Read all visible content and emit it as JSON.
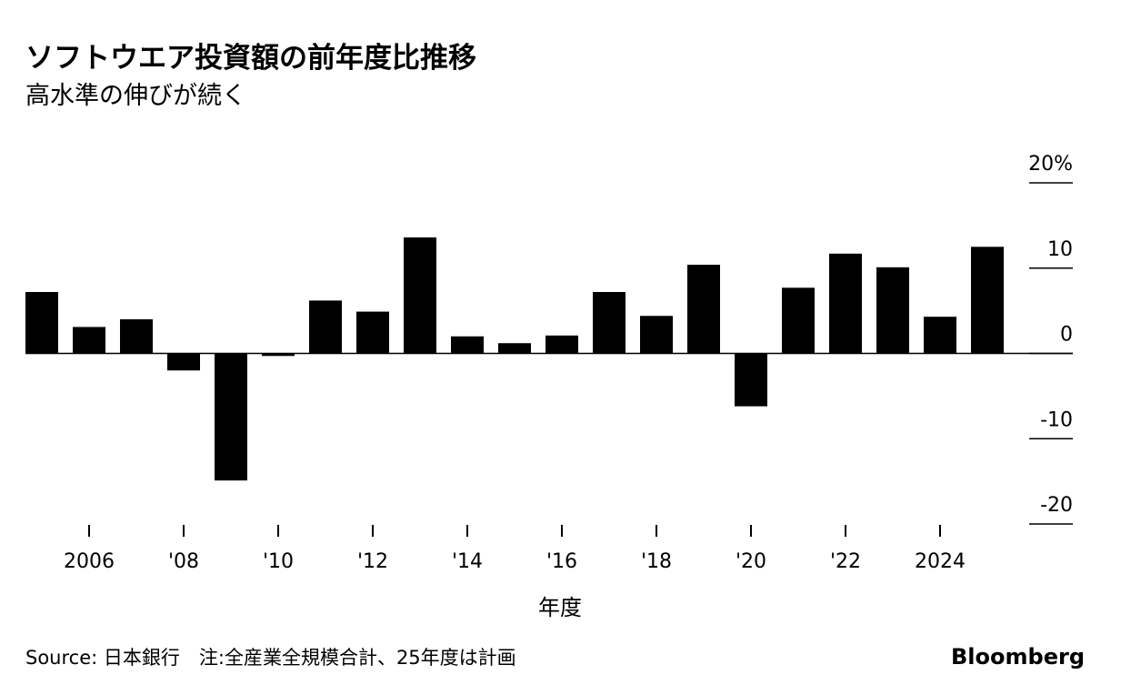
{
  "chart_data": {
    "type": "bar",
    "title": "ソフトウエア投資額の前年度比推移",
    "subtitle": "高水準の伸びが続く",
    "x_label": "年度",
    "source": "Source: 日本銀行　注:全産業全規模合計、25年度は計画",
    "brand": "Bloomberg",
    "categories": [
      null,
      "2006",
      null,
      "'08",
      null,
      "'10",
      null,
      "'12",
      null,
      "'14",
      null,
      "'16",
      null,
      "'18",
      null,
      "'20",
      null,
      "'22",
      null,
      "2024",
      null
    ],
    "values": [
      7.2,
      3.1,
      4.0,
      -2.0,
      -14.9,
      -0.3,
      6.2,
      4.9,
      13.6,
      2.0,
      1.2,
      2.1,
      7.2,
      4.4,
      10.4,
      -6.2,
      7.7,
      11.7,
      10.1,
      4.3,
      12.5
    ],
    "color": "#000000",
    "ylim": [
      -20,
      20
    ],
    "yticks": [
      {
        "value": 20,
        "label": "20%"
      },
      10,
      0,
      -10,
      -20
    ]
  }
}
